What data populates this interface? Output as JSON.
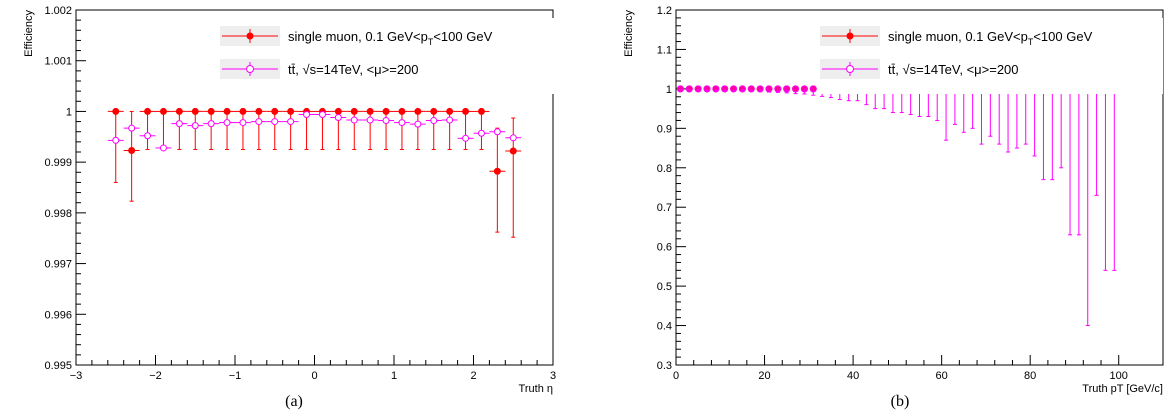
{
  "chart_data": [
    {
      "type": "scatter",
      "panel_caption": "(a)",
      "xlabel": "Truth η",
      "ylabel": "Efficiency",
      "xlim": [
        -3,
        3
      ],
      "ylim": [
        0.995,
        1.002
      ],
      "xticks": [
        -3,
        -2,
        -1,
        0,
        1,
        2,
        3
      ],
      "xtick_labels": [
        "−3",
        "−2",
        "−1",
        "0",
        "1",
        "2",
        "3"
      ],
      "yticks": [
        0.995,
        0.996,
        0.997,
        0.998,
        0.999,
        1,
        1.001,
        1.002
      ],
      "ytick_labels": [
        "0.995",
        "0.996",
        "0.997",
        "0.998",
        "0.999",
        "1",
        "1.001",
        "1.002"
      ],
      "grid": false,
      "legend_position": "top-right",
      "legend": [
        {
          "main": "single muon, 0.1 GeV<p",
          "sub": "T",
          "tail": "<100 GeV",
          "color": "#ff0000",
          "marker": "filled-circle"
        },
        {
          "main": "tt̄, √s=14TeV, <μ>=200",
          "sub": "",
          "tail": "",
          "color": "#ff00ff",
          "marker": "open-circle"
        }
      ],
      "series": [
        {
          "name": "single muon, 0.1 GeV<pT<100 GeV",
          "color": "#ff0000",
          "marker": "filled-circle",
          "x": [
            -2.5,
            -2.3,
            -2.1,
            -1.9,
            -1.7,
            -1.5,
            -1.3,
            -1.1,
            -0.9,
            -0.7,
            -0.5,
            -0.3,
            -0.1,
            0.1,
            0.3,
            0.5,
            0.7,
            0.9,
            1.1,
            1.3,
            1.5,
            1.7,
            1.9,
            2.1,
            2.3,
            2.5
          ],
          "y": [
            1.0,
            0.99923,
            1.0,
            1.0,
            1.0,
            1.0,
            1.0,
            1.0,
            1.0,
            1.0,
            1.0,
            1.0,
            1.0,
            1.0,
            1.0,
            1.0,
            1.0,
            1.0,
            1.0,
            1.0,
            1.0,
            1.0,
            1.0,
            1.0,
            0.99882,
            0.99922
          ],
          "yerr_low": [
            0.0014,
            0.001,
            0.00075,
            0.00075,
            0.00075,
            0.00075,
            0.00075,
            0.00075,
            0.00075,
            0.00075,
            0.00075,
            0.00075,
            0.00075,
            0.00075,
            0.00075,
            0.00075,
            0.00075,
            0.00075,
            0.00075,
            0.00075,
            0.00075,
            0.00075,
            0.00075,
            0.00075,
            0.0012,
            0.0017
          ],
          "yerr_high": [
            0,
            0.00077,
            0,
            0,
            0,
            0,
            0,
            0,
            0,
            0,
            0,
            0,
            0,
            0,
            0,
            0,
            0,
            0,
            0,
            0,
            0,
            0,
            0,
            0,
            0.00085,
            0.00065
          ],
          "xerr": 0.1
        },
        {
          "name": "tt̄, √s=14TeV, <μ>=200",
          "color": "#ff00ff",
          "marker": "open-circle",
          "x": [
            -2.5,
            -2.3,
            -2.1,
            -1.9,
            -1.7,
            -1.5,
            -1.3,
            -1.1,
            -0.9,
            -0.7,
            -0.5,
            -0.3,
            -0.1,
            0.1,
            0.3,
            0.5,
            0.7,
            0.9,
            1.1,
            1.3,
            1.5,
            1.7,
            1.9,
            2.1,
            2.3,
            2.5
          ],
          "y": [
            0.99943,
            0.99967,
            0.99952,
            0.99928,
            0.99976,
            0.99972,
            0.99976,
            0.99978,
            0.99978,
            0.9998,
            0.9998,
            0.9998,
            0.99994,
            0.99994,
            0.99988,
            0.99983,
            0.99983,
            0.99982,
            0.99978,
            0.99975,
            0.99982,
            0.99983,
            0.99947,
            0.99957,
            0.9996,
            0.99948
          ],
          "yerr_low": [
            5e-05,
            4e-05,
            4e-05,
            3e-05,
            3e-05,
            3e-05,
            3e-05,
            3e-05,
            3e-05,
            3e-05,
            3e-05,
            3e-05,
            3e-05,
            3e-05,
            3e-05,
            3e-05,
            3e-05,
            3e-05,
            3e-05,
            3e-05,
            3e-05,
            3e-05,
            3e-05,
            3e-05,
            4e-05,
            4e-05
          ],
          "yerr_high": [
            5e-05,
            4e-05,
            4e-05,
            3e-05,
            3e-05,
            3e-05,
            3e-05,
            3e-05,
            3e-05,
            3e-05,
            3e-05,
            3e-05,
            3e-05,
            3e-05,
            3e-05,
            3e-05,
            3e-05,
            3e-05,
            3e-05,
            3e-05,
            3e-05,
            3e-05,
            3e-05,
            3e-05,
            4e-05,
            4e-05
          ],
          "xerr": 0.1
        }
      ]
    },
    {
      "type": "scatter",
      "panel_caption": "(b)",
      "xlabel": "Truth pT [GeV/c]",
      "ylabel": "Efficiency",
      "xlim": [
        0,
        110
      ],
      "ylim": [
        0.3,
        1.2
      ],
      "xticks": [
        0,
        20,
        40,
        60,
        80,
        100
      ],
      "xtick_labels": [
        "0",
        "20",
        "40",
        "60",
        "80",
        "100"
      ],
      "yticks": [
        0.3,
        0.4,
        0.5,
        0.6,
        0.7,
        0.8,
        0.9,
        1,
        1.1,
        1.2
      ],
      "ytick_labels": [
        "0.3",
        "0.4",
        "0.5",
        "0.6",
        "0.7",
        "0.8",
        "0.9",
        "1",
        "1.1",
        "1.2"
      ],
      "grid": false,
      "legend_position": "top-right",
      "legend": [
        {
          "main": "single muon, 0.1 GeV<p",
          "sub": "T",
          "tail": "<100 GeV",
          "color": "#ff0000",
          "marker": "filled-circle"
        },
        {
          "main": "tt̄, √s=14TeV, <μ>=200",
          "sub": "",
          "tail": "",
          "color": "#ff00ff",
          "marker": "open-circle"
        }
      ],
      "series": [
        {
          "name": "single muon, 0.1 GeV<pT<100 GeV",
          "color": "#ff0000",
          "marker": "filled-circle",
          "x": [
            1,
            3,
            5,
            7,
            9,
            11,
            13,
            15,
            17,
            19,
            21,
            23,
            25,
            27,
            29,
            31,
            33,
            35,
            37,
            39,
            41,
            43,
            45,
            47,
            49,
            51,
            53,
            55,
            57,
            59,
            61,
            63,
            65,
            67,
            69,
            71,
            73,
            75,
            77,
            79,
            81,
            83,
            85,
            87,
            89,
            91,
            93,
            95,
            97,
            99
          ],
          "y": [
            1,
            1,
            1,
            1,
            1,
            1,
            1,
            1,
            1,
            1,
            1,
            1,
            1,
            1,
            1,
            1,
            1,
            1,
            1,
            1,
            1,
            1,
            1,
            1,
            1,
            1,
            1,
            1,
            1,
            1,
            1,
            1,
            1,
            1,
            1,
            1,
            1,
            1,
            1,
            1,
            1,
            1,
            1,
            1,
            1,
            1,
            1,
            1,
            1,
            1
          ],
          "yerr_low": [
            0,
            0,
            0,
            0,
            0,
            0,
            0,
            0,
            0,
            0,
            0,
            0,
            0,
            0,
            0,
            0,
            0,
            0,
            0,
            0,
            0,
            0,
            0,
            0,
            0,
            0,
            0,
            0,
            0,
            0,
            0,
            0,
            0,
            0,
            0,
            0,
            0,
            0,
            0,
            0,
            0,
            0,
            0,
            0,
            0,
            0,
            0,
            0,
            0,
            0
          ],
          "yerr_high": [
            0,
            0,
            0,
            0,
            0,
            0,
            0,
            0,
            0,
            0,
            0,
            0,
            0,
            0,
            0,
            0,
            0,
            0,
            0,
            0,
            0,
            0,
            0,
            0,
            0,
            0,
            0,
            0,
            0,
            0,
            0,
            0,
            0,
            0,
            0,
            0,
            0,
            0,
            0,
            0,
            0,
            0,
            0,
            0,
            0,
            0,
            0,
            0,
            0,
            0
          ],
          "xerr": 0
        },
        {
          "name": "tt̄, √s=14TeV, <μ>=200",
          "color": "#ff00ff",
          "marker": "open-circle",
          "x": [
            1,
            3,
            5,
            7,
            9,
            11,
            13,
            15,
            17,
            19,
            21,
            23,
            25,
            27,
            29,
            31,
            33,
            35,
            37,
            39,
            41,
            43,
            45,
            47,
            49,
            51,
            53,
            55,
            57,
            59,
            61,
            63,
            65,
            67,
            69,
            71,
            73,
            75,
            77,
            79,
            81,
            83,
            85,
            87,
            89,
            91,
            93,
            95,
            97,
            99
          ],
          "y": [
            1,
            1,
            1,
            1,
            1,
            1,
            1,
            1,
            1,
            1,
            1,
            1,
            1,
            1,
            1,
            1,
            1,
            1,
            1,
            1,
            1,
            1,
            1,
            1,
            1,
            1,
            1,
            1,
            1,
            1,
            1,
            1,
            1,
            1,
            1,
            1,
            1,
            1,
            1,
            1,
            1,
            1,
            1,
            1,
            1,
            1,
            1,
            1,
            1,
            1
          ],
          "yerr_low": [
            0.002,
            0.003,
            0.003,
            0.004,
            0.004,
            0.005,
            0.005,
            0.006,
            0.006,
            0.007,
            0.008,
            0.009,
            0.01,
            0.012,
            0.013,
            0.016,
            0.019,
            0.022,
            0.027,
            0.03,
            0.03,
            0.04,
            0.05,
            0.05,
            0.06,
            0.06,
            0.065,
            0.07,
            0.07,
            0.08,
            0.13,
            0.09,
            0.11,
            0.1,
            0.14,
            0.12,
            0.14,
            0.16,
            0.15,
            0.14,
            0.17,
            0.23,
            0.23,
            0.2,
            0.37,
            0.37,
            0.6,
            0.27,
            0.46,
            0.46
          ],
          "yerr_high": [
            0,
            0,
            0,
            0,
            0,
            0,
            0,
            0,
            0,
            0,
            0,
            0,
            0,
            0,
            0,
            0,
            0,
            0,
            0,
            0,
            0,
            0,
            0,
            0,
            0,
            0,
            0,
            0,
            0,
            0,
            0,
            0,
            0,
            0,
            0,
            0,
            0,
            0,
            0,
            0,
            0,
            0,
            0,
            0,
            0,
            0,
            0,
            0,
            0,
            0
          ],
          "xerr": 0
        }
      ]
    }
  ]
}
